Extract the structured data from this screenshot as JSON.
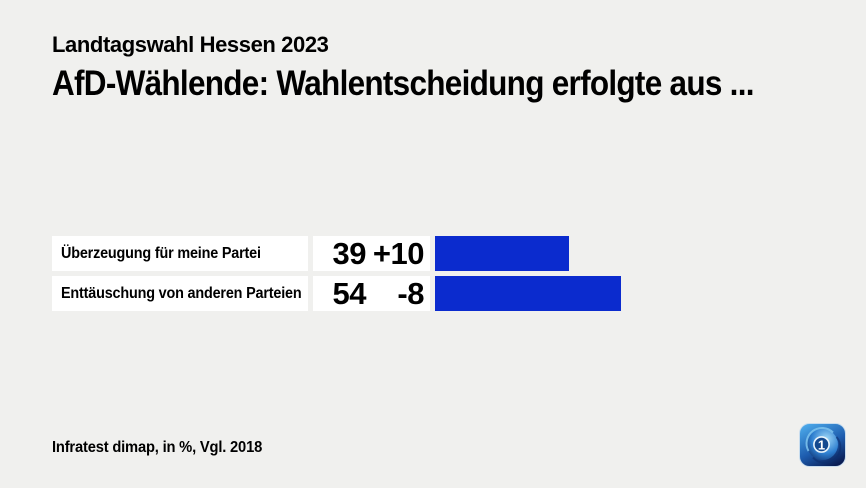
{
  "chart_data": {
    "type": "bar",
    "orientation": "horizontal",
    "kicker": "Landtagswahl Hessen 2023",
    "title": "AfD-Wählende: Wahlentscheidung erfolgte aus ...",
    "categories": [
      "Überzeugung für meine Partei",
      "Enttäuschung von anderen Parteien"
    ],
    "values": [
      39,
      54
    ],
    "change_vs_2018": [
      "+10",
      "-8"
    ],
    "unit": "%",
    "source": "Infratest dimap, in %, Vgl. 2018",
    "xlim": [
      0,
      100
    ],
    "bar_color": "#0b2bce",
    "legend": "none",
    "grid": "off"
  },
  "page": {
    "background_color": "#f0f0ee",
    "row_background_color": "#ffffff"
  },
  "logo": {
    "glyph": "1"
  }
}
